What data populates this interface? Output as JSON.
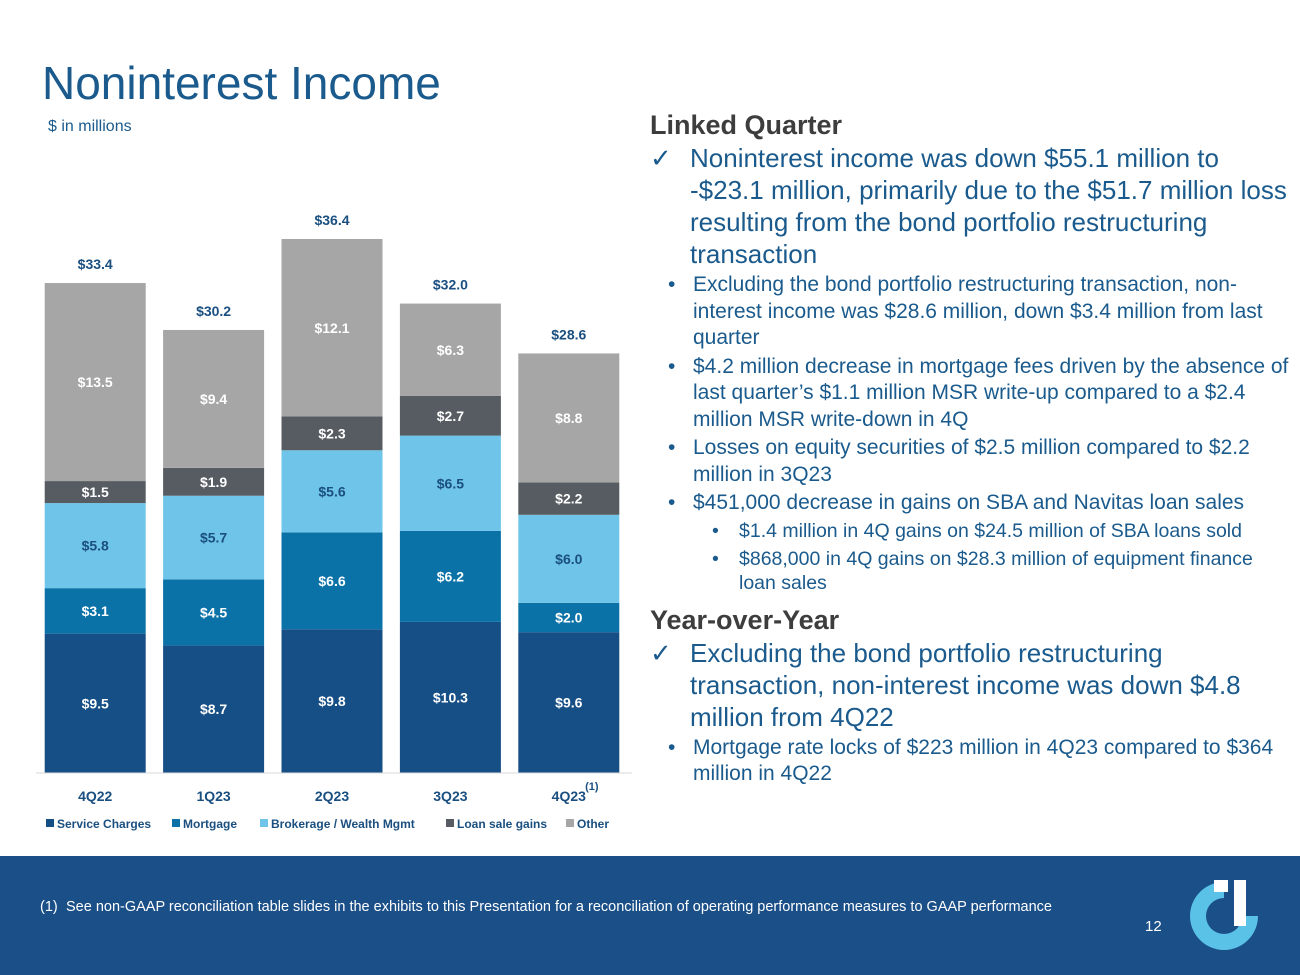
{
  "title": "Noninterest Income",
  "subtitle": "$ in millions",
  "chart_data": {
    "type": "stacked-bar",
    "categories": [
      "4Q22",
      "1Q23",
      "2Q23",
      "3Q23",
      "4Q23"
    ],
    "category_footnote": {
      "index": 4,
      "mark": "(1)"
    },
    "series": [
      {
        "name": "Service Charges",
        "color": "#164f85",
        "values": [
          9.5,
          8.7,
          9.8,
          10.3,
          9.6
        ]
      },
      {
        "name": "Mortgage",
        "color": "#0b72a8",
        "values": [
          3.1,
          4.5,
          6.6,
          6.2,
          2.0
        ]
      },
      {
        "name": "Brokerage / Wealth Mgmt",
        "color": "#6fc4e9",
        "values": [
          5.8,
          5.7,
          5.6,
          6.5,
          6.0
        ]
      },
      {
        "name": "Loan sale gains",
        "color": "#565c61",
        "values": [
          1.5,
          1.9,
          2.3,
          2.7,
          2.2
        ]
      },
      {
        "name": "Other",
        "color": "#a6a6a6",
        "values": [
          13.5,
          9.4,
          12.1,
          6.3,
          8.8
        ]
      }
    ],
    "totals": [
      "$33.4",
      "$30.2",
      "$36.4",
      "$32.0",
      "$28.6"
    ],
    "value_prefix": "$",
    "ylim": [
      0,
      40
    ],
    "legend": "bottom"
  },
  "commentary": {
    "linked_heading": "Linked Quarter",
    "check_mark": "✓",
    "bullet_mark": "•",
    "linked_main": "Noninterest income was down $55.1 million to -$23.1 million, primarily due to the $51.7 million loss resulting from the bond portfolio restructuring transaction",
    "linked_bullets": [
      "Excluding the bond portfolio restructuring transaction, non-interest income was $28.6 million, down $3.4 million from last quarter",
      "$4.2 million decrease in mortgage fees driven by the absence of last quarter’s $1.1 million MSR write-up compared to a $2.4 million MSR write-down in 4Q",
      "Losses on equity securities of $2.5 million compared to $2.2 million in 3Q23",
      "$451,000 decrease in gains on SBA and Navitas loan sales"
    ],
    "linked_subbullets": [
      "$1.4 million in 4Q gains on $24.5 million of SBA loans sold",
      "$868,000 in 4Q gains on $28.3 million of equipment finance loan sales"
    ],
    "yoy_heading": "Year-over-Year",
    "yoy_main": "Excluding the bond portfolio restructuring transaction, non-interest income was down $4.8 million from 4Q22",
    "yoy_bullet": "Mortgage rate locks of $223 million in 4Q23 compared to $364 million in 4Q22"
  },
  "footnote": {
    "mark": "(1)",
    "text": "See non-GAAP reconciliation table slides in the exhibits to this Presentation for a reconciliation of operating performance measures to GAAP performance"
  },
  "page_number": "12",
  "colors": {
    "title": "#1a5a8c",
    "footer_bg": "#1b4f87",
    "logo_light": "#5bc2e7",
    "logo_white": "#ffffff"
  }
}
